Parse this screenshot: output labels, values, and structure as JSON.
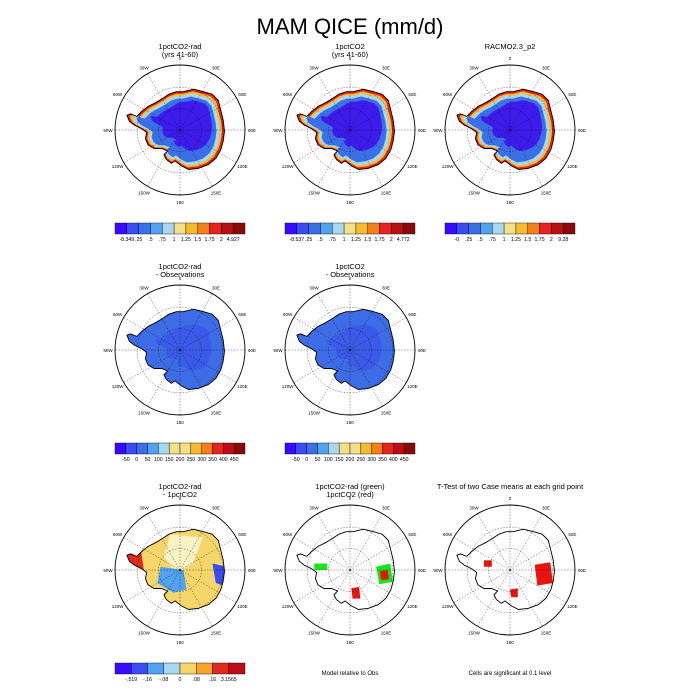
{
  "figure": {
    "title": "MAM QICE (mm/d)"
  },
  "palettes": {
    "sequential": [
      "#3a0aff",
      "#3b4cf2",
      "#3b6fe6",
      "#52a2f0",
      "#a8d8f0",
      "#f5e08a",
      "#f5bb2e",
      "#f57f18",
      "#e8231d",
      "#b80f16",
      "#8a0a0a"
    ],
    "diverging": [
      "#3a0aff",
      "#3b4cf2",
      "#3b6fe6",
      "#52a2f0",
      "#a8d8f0",
      "#f7f2c3",
      "#f5d66a",
      "#f5a32a",
      "#f06a1c",
      "#e02a1c",
      "#b80f16"
    ],
    "ice_interior": "#3d1bea",
    "ice_mid": "#3b66e6",
    "ice_bias": "#3e6be6",
    "sig_red": "#e8150f",
    "sig_green": "#17e61a"
  },
  "chart_data": [
    {
      "type": "heatmap",
      "title": "1pctCO2-rad",
      "subtitle": "(yrs 41-60)",
      "map": "antarctica_polar_stereographic",
      "longitude_labels": [
        "0",
        "30E",
        "60E",
        "90E",
        "120E",
        "150E",
        "180",
        "150W",
        "120W",
        "90W",
        "60W",
        "30W"
      ],
      "colorbar": [
        "-8.349",
        ".25",
        ".5",
        ".75",
        "1",
        "1.25",
        "1.5",
        "1.75",
        "2",
        "4.927"
      ],
      "colorbar_palette": "sequential"
    },
    {
      "type": "heatmap",
      "title": "1pctCO2",
      "subtitle": "(yrs 41-60)",
      "map": "antarctica_polar_stereographic",
      "longitude_labels": [
        "0",
        "30E",
        "60E",
        "90E",
        "120E",
        "150E",
        "180",
        "150W",
        "120W",
        "90W",
        "60W",
        "30W"
      ],
      "colorbar": [
        "-8.537",
        ".25",
        ".5",
        ".75",
        "1",
        "1.25",
        "1.5",
        "1.75",
        "2",
        "4.772"
      ],
      "colorbar_palette": "sequential"
    },
    {
      "type": "heatmap",
      "title": "RACMO2.3_p2",
      "subtitle": "",
      "map": "antarctica_polar_stereographic",
      "longitude_labels": [
        "0",
        "30E",
        "60E",
        "90E",
        "120E",
        "150E",
        "180",
        "150W",
        "120W",
        "90W",
        "60W",
        "30W"
      ],
      "colorbar": [
        "-0",
        ".25",
        ".5",
        ".75",
        "1",
        "1.25",
        "1.5",
        "1.75",
        "2",
        "9.28"
      ],
      "colorbar_palette": "sequential"
    },
    {
      "type": "heatmap",
      "title": "1pctCO2-rad",
      "subtitle": "- Observations",
      "map": "antarctica_polar_stereographic",
      "longitude_labels": [
        "0",
        "30E",
        "60E",
        "90E",
        "120E",
        "150E",
        "180",
        "150W",
        "120W",
        "90W",
        "60W",
        "30W"
      ],
      "colorbar": [
        "-50",
        "0",
        "50",
        "100",
        "150",
        "200",
        "250",
        "300",
        "350",
        "400",
        "450"
      ],
      "colorbar_palette": "sequential"
    },
    {
      "type": "heatmap",
      "title": "1pctCO2",
      "subtitle": "- Observations",
      "map": "antarctica_polar_stereographic",
      "longitude_labels": [
        "0",
        "30E",
        "60E",
        "90E",
        "120E",
        "150E",
        "180",
        "150W",
        "120W",
        "90W",
        "60W",
        "30W"
      ],
      "colorbar": [
        "-50",
        "0",
        "50",
        "100",
        "150",
        "200",
        "250",
        "300",
        "350",
        "400",
        "450"
      ],
      "colorbar_palette": "sequential"
    },
    {
      "type": "heatmap",
      "title": "1pctCO2-rad",
      "subtitle": "- 1pctCO2",
      "map": "antarctica_polar_stereographic",
      "longitude_labels": [
        "0",
        "30E",
        "60E",
        "90E",
        "120E",
        "150E",
        "180",
        "150W",
        "120W",
        "90W",
        "60W",
        "30W"
      ],
      "colorbar": [
        "-.519",
        "-.16",
        "-.08",
        "0",
        ".08",
        ".16",
        "3.1565"
      ],
      "colorbar_palette": "diverging"
    },
    {
      "type": "heatmap",
      "title": "1pctCO2-rad (green)",
      "subtitle": "1pctCO2 (red)",
      "map": "antarctica_polar_stereographic",
      "longitude_labels": [
        "0",
        "30E",
        "60E",
        "90E",
        "120E",
        "150E",
        "180",
        "150W",
        "120W",
        "90W",
        "60W",
        "30W"
      ],
      "note": "Model relative to Obs"
    },
    {
      "type": "heatmap",
      "title": "T-Test of two Case means at each grid point",
      "subtitle": "",
      "map": "antarctica_polar_stereographic",
      "longitude_labels": [
        "0",
        "30E",
        "60E",
        "90E",
        "120E",
        "150E",
        "180",
        "150W",
        "120W",
        "90W",
        "60W",
        "30W"
      ],
      "note": "Cells are significant at 0.1 level"
    }
  ]
}
